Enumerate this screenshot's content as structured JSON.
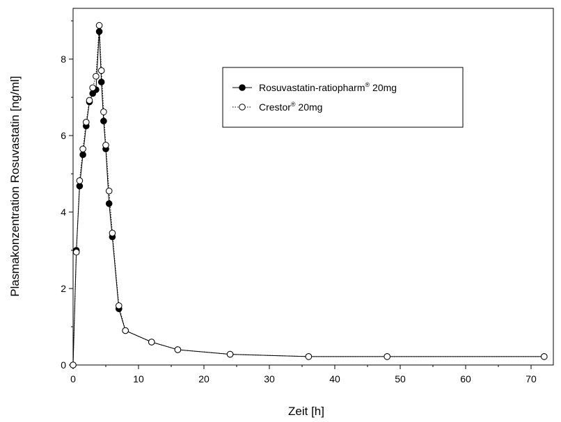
{
  "chart_data": {
    "type": "line",
    "xlabel": "Zeit [h]",
    "ylabel": "Plasmakonzentration Rosuvastatin [ng/ml]",
    "xlim": [
      0,
      75
    ],
    "ylim": [
      0,
      9.3
    ],
    "x_ticks": [
      0,
      10,
      20,
      30,
      40,
      50,
      60,
      70
    ],
    "y_ticks": [
      0,
      2,
      4,
      6,
      8
    ],
    "grid": false,
    "legend_position": "top-right",
    "series": [
      {
        "name": "Rosuvastatin-ratiopharm",
        "name_sup": "®",
        "name_suffix": " 20mg",
        "marker": "filled-circle",
        "line_style": "solid",
        "x": [
          0,
          0.5,
          1,
          1.5,
          2,
          2.5,
          3,
          3.5,
          4,
          4.33,
          4.67,
          5,
          5.5,
          6,
          7,
          8,
          12,
          16,
          24,
          36,
          48,
          72
        ],
        "y": [
          0,
          3.0,
          4.68,
          5.5,
          6.25,
          6.88,
          7.1,
          7.2,
          8.72,
          7.4,
          6.38,
          5.65,
          4.22,
          3.35,
          1.47,
          0.9,
          0.6,
          0.4,
          0.28,
          0.22,
          0.22,
          0.22
        ]
      },
      {
        "name": "Crestor",
        "name_sup": "®",
        "name_suffix": " 20mg",
        "marker": "open-circle",
        "line_style": "dotted",
        "x": [
          0,
          0.5,
          1,
          1.5,
          2,
          2.5,
          3,
          3.5,
          4,
          4.33,
          4.67,
          5,
          5.5,
          6,
          7,
          8,
          12,
          16,
          24,
          36,
          48,
          72
        ],
        "y": [
          0,
          2.95,
          4.82,
          5.65,
          6.35,
          6.92,
          7.25,
          7.55,
          8.88,
          7.7,
          6.62,
          5.75,
          4.55,
          3.45,
          1.55,
          0.9,
          0.6,
          0.4,
          0.28,
          0.22,
          0.22,
          0.22
        ]
      }
    ]
  }
}
